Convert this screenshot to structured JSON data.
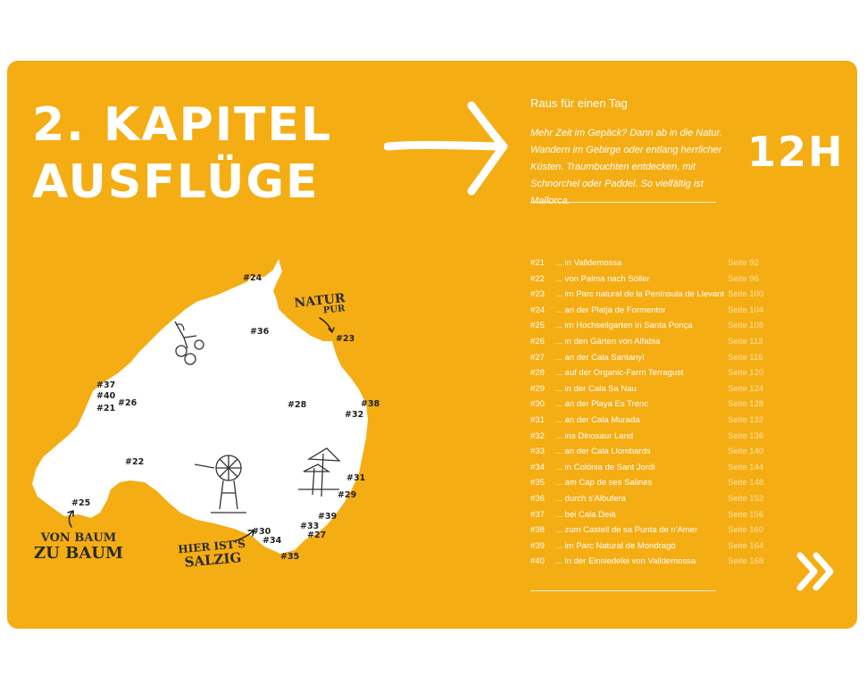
{
  "colors": {
    "background": "#f5ad14",
    "text": "#ffffff",
    "muted": "#fde2a2",
    "map": "#ffffff",
    "map_label": "#222222"
  },
  "chapter": {
    "line1": "2. KAPITEL",
    "line2": "AUSFLÜGE"
  },
  "subtitle": "Raus für einen Tag",
  "intro": "Mehr Zeit im Gepäck? Dann ab in die Natur. Wandern im Gebirge oder entlang herrlicher Küsten. Traumbuchten entdecken, mit Schnorchel oder Paddel. So vielfältig ist Mallorca.",
  "hours": "12H",
  "toc": [
    {
      "num": "#21",
      "title": "... in Valldemossa",
      "page": "Seite  92"
    },
    {
      "num": "#22",
      "title": "... von Palma nach Sóller",
      "page": "Seite  96"
    },
    {
      "num": "#23",
      "title": "... im Parc natural de la Península de Llevant",
      "page": "Seite 100"
    },
    {
      "num": "#24",
      "title": "... an der Platja de Formentor",
      "page": "Seite 104"
    },
    {
      "num": "#25",
      "title": "... im Hochseilgarten in Santa Ponça",
      "page": "Seite 108"
    },
    {
      "num": "#26",
      "title": "... in den Gärten von Alfabia",
      "page": "Seite 112"
    },
    {
      "num": "#27",
      "title": "... an der Cala Santanyí",
      "page": "Seite 116"
    },
    {
      "num": "#28",
      "title": "... auf der Organic-Farm Terragust",
      "page": "Seite 120"
    },
    {
      "num": "#29",
      "title": "... in der Cala Sa Nau",
      "page": "Seite 124"
    },
    {
      "num": "#30",
      "title": "... an der Playa Es Trenc",
      "page": "Seite 128"
    },
    {
      "num": "#31",
      "title": "... an der Cala Murada",
      "page": "Seite 132"
    },
    {
      "num": "#32",
      "title": "... ins Dinosaur Land",
      "page": "Seite 136"
    },
    {
      "num": "#33",
      "title": "... an der Cala Llombards",
      "page": "Seite 140"
    },
    {
      "num": "#34",
      "title": "... in Colònia de Sant Jordi",
      "page": "Seite 144"
    },
    {
      "num": "#35",
      "title": "... am Cap de ses Salines",
      "page": "Seite 148"
    },
    {
      "num": "#36",
      "title": "... durch s'Albufera",
      "page": "Seite 152"
    },
    {
      "num": "#37",
      "title": "... bei Cala Deià",
      "page": "Seite 156"
    },
    {
      "num": "#38",
      "title": "... zum Castell de sa Punta de n'Amer",
      "page": "Seite 160"
    },
    {
      "num": "#39",
      "title": "... im Parc Natural de Mondragó",
      "page": "Seite 164"
    },
    {
      "num": "#40",
      "title": "... in der Einsiedelei von Valldemossa",
      "page": "Seite 168"
    }
  ],
  "map": {
    "labels": [
      "#24",
      "#36",
      "#23",
      "#37",
      "#40",
      "#21",
      "#26",
      "#28",
      "#38",
      "#32",
      "#22",
      "#31",
      "#29",
      "#25",
      "#39",
      "#33",
      "#30",
      "#27",
      "#34",
      "#35"
    ],
    "notes": {
      "natur_top": "NATUR",
      "natur_bottom": "PUR",
      "baum_top": "VON BAUM",
      "baum_bottom": "ZU BAUM",
      "salz_top": "HIER IST'S",
      "salz_bottom": "SALZIG"
    }
  }
}
